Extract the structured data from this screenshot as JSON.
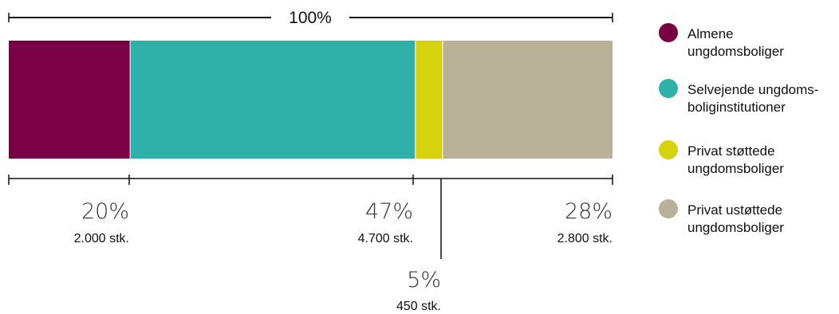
{
  "chart_data": {
    "type": "bar",
    "orientation": "horizontal-stacked",
    "total_label": "100%",
    "series": [
      {
        "name": "Almene ungdomsboliger",
        "legend_lines": [
          "Almene",
          "ungdomsboliger"
        ],
        "value": 2000,
        "percent_label": "20%",
        "count_label": "2.000 stk.",
        "color": "#7a0045"
      },
      {
        "name": "Selvejende ungdomsboliginstitutioner",
        "legend_lines": [
          "Selvejende ungdoms-",
          "boliginstitutioner"
        ],
        "value": 4700,
        "percent_label": "47%",
        "count_label": "4.700 stk.",
        "color": "#2db1a8"
      },
      {
        "name": "Privat støttede ungdomsboliger",
        "legend_lines": [
          "Privat støttede",
          "ungdomsboliger"
        ],
        "value": 450,
        "percent_label": "5%",
        "count_label": "450 stk.",
        "color": "#d6d30e"
      },
      {
        "name": "Privat ustøttede ungdomsboliger",
        "legend_lines": [
          "Privat ustøttede",
          "ungdomsboliger"
        ],
        "value": 2800,
        "percent_label": "28%",
        "count_label": "2.800 stk.",
        "color": "#b8b098"
      }
    ],
    "legend_position": "right"
  }
}
